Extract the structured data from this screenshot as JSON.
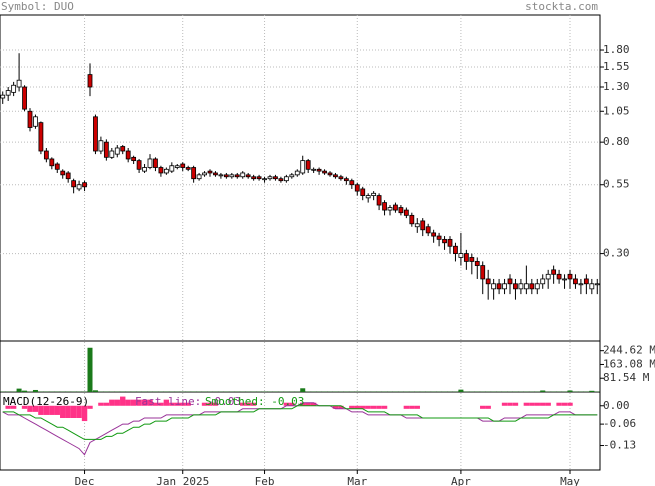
{
  "header": {
    "symbol": "Symbol: DUO",
    "site": "stockta.com"
  },
  "chart_data": [
    {
      "type": "candlestick",
      "xlim": [
        -0.5,
        109.5
      ],
      "xticks": [
        {
          "value": 15,
          "label": "Dec"
        },
        {
          "value": 33,
          "label": "Jan 2025"
        },
        {
          "value": 48,
          "label": "Feb"
        },
        {
          "value": 65,
          "label": "Mar"
        },
        {
          "value": 84,
          "label": "Apr"
        },
        {
          "value": 104,
          "label": "May"
        }
      ],
      "log_scale": true,
      "ylim": [
        0.139,
        2.45
      ],
      "yticks": [
        {
          "value": 1.8,
          "label": "1.80"
        },
        {
          "value": 1.55,
          "label": "1.55"
        },
        {
          "value": 1.3,
          "label": "1.30"
        },
        {
          "value": 1.05,
          "label": "1.05"
        },
        {
          "value": 0.8,
          "label": "0.80"
        },
        {
          "value": 0.55,
          "label": "0.55"
        },
        {
          "value": 0.3,
          "label": "0.30"
        }
      ],
      "grid": true,
      "up_color": "#ffffff",
      "down_color": "#cc0000",
      "open": [
        1.18,
        1.21,
        1.24,
        1.3,
        1.3,
        1.05,
        0.92,
        0.95,
        0.74,
        0.69,
        0.66,
        0.62,
        0.61,
        0.57,
        0.53,
        0.56,
        1.45,
        1.0,
        0.74,
        0.8,
        0.7,
        0.72,
        0.77,
        0.74,
        0.7,
        0.68,
        0.62,
        0.64,
        0.69,
        0.64,
        0.61,
        0.62,
        0.64,
        0.66,
        0.64,
        0.64,
        0.58,
        0.6,
        0.62,
        0.61,
        0.6,
        0.6,
        0.59,
        0.6,
        0.59,
        0.6,
        0.59,
        0.59,
        0.58,
        0.58,
        0.59,
        0.58,
        0.57,
        0.59,
        0.6,
        0.61,
        0.68,
        0.63,
        0.63,
        0.62,
        0.61,
        0.6,
        0.59,
        0.58,
        0.57,
        0.55,
        0.53,
        0.49,
        0.5,
        0.5,
        0.47,
        0.44,
        0.46,
        0.45,
        0.44,
        0.42,
        0.38,
        0.4,
        0.38,
        0.36,
        0.35,
        0.34,
        0.34,
        0.32,
        0.29,
        0.3,
        0.29,
        0.28,
        0.27,
        0.24,
        0.22,
        0.23,
        0.22,
        0.24,
        0.23,
        0.22,
        0.22,
        0.23,
        0.22,
        0.23,
        0.24,
        0.26,
        0.25,
        0.24,
        0.25,
        0.24,
        0.23,
        0.24,
        0.22,
        0.23
      ],
      "high": [
        1.25,
        1.3,
        1.36,
        1.75,
        1.32,
        1.08,
        1.02,
        0.96,
        0.76,
        0.7,
        0.67,
        0.63,
        0.62,
        0.58,
        0.57,
        0.57,
        1.6,
        1.02,
        0.84,
        0.82,
        0.76,
        0.78,
        0.78,
        0.76,
        0.71,
        0.69,
        0.66,
        0.72,
        0.7,
        0.65,
        0.64,
        0.67,
        0.66,
        0.67,
        0.65,
        0.65,
        0.61,
        0.62,
        0.63,
        0.62,
        0.61,
        0.61,
        0.61,
        0.61,
        0.62,
        0.61,
        0.6,
        0.6,
        0.59,
        0.6,
        0.6,
        0.59,
        0.6,
        0.61,
        0.63,
        0.71,
        0.69,
        0.64,
        0.64,
        0.63,
        0.62,
        0.61,
        0.6,
        0.59,
        0.58,
        0.56,
        0.54,
        0.51,
        0.52,
        0.51,
        0.48,
        0.46,
        0.47,
        0.46,
        0.45,
        0.43,
        0.41,
        0.41,
        0.39,
        0.37,
        0.36,
        0.35,
        0.35,
        0.33,
        0.36,
        0.31,
        0.3,
        0.29,
        0.28,
        0.26,
        0.24,
        0.24,
        0.24,
        0.25,
        0.24,
        0.24,
        0.27,
        0.24,
        0.24,
        0.25,
        0.26,
        0.27,
        0.26,
        0.25,
        0.26,
        0.25,
        0.24,
        0.25,
        0.24,
        0.24
      ],
      "low": [
        1.12,
        1.15,
        1.2,
        1.25,
        1.05,
        0.88,
        0.9,
        0.72,
        0.67,
        0.63,
        0.61,
        0.58,
        0.56,
        0.51,
        0.52,
        0.52,
        1.2,
        0.72,
        0.72,
        0.68,
        0.69,
        0.7,
        0.72,
        0.67,
        0.66,
        0.61,
        0.61,
        0.63,
        0.62,
        0.59,
        0.6,
        0.61,
        0.63,
        0.62,
        0.62,
        0.56,
        0.57,
        0.59,
        0.59,
        0.59,
        0.58,
        0.58,
        0.58,
        0.58,
        0.58,
        0.58,
        0.57,
        0.57,
        0.56,
        0.57,
        0.57,
        0.56,
        0.56,
        0.58,
        0.59,
        0.6,
        0.61,
        0.61,
        0.6,
        0.6,
        0.59,
        0.58,
        0.57,
        0.55,
        0.53,
        0.5,
        0.48,
        0.47,
        0.48,
        0.44,
        0.42,
        0.42,
        0.43,
        0.42,
        0.41,
        0.38,
        0.36,
        0.35,
        0.35,
        0.33,
        0.32,
        0.31,
        0.3,
        0.28,
        0.27,
        0.26,
        0.25,
        0.24,
        0.21,
        0.2,
        0.2,
        0.21,
        0.21,
        0.21,
        0.2,
        0.21,
        0.21,
        0.21,
        0.21,
        0.22,
        0.22,
        0.23,
        0.23,
        0.22,
        0.22,
        0.22,
        0.21,
        0.21,
        0.21,
        0.21
      ],
      "close": [
        1.21,
        1.26,
        1.32,
        1.38,
        1.07,
        0.91,
        1.0,
        0.74,
        0.69,
        0.65,
        0.63,
        0.6,
        0.58,
        0.54,
        0.55,
        0.54,
        1.3,
        0.74,
        0.81,
        0.7,
        0.74,
        0.76,
        0.74,
        0.69,
        0.68,
        0.63,
        0.64,
        0.69,
        0.64,
        0.61,
        0.63,
        0.65,
        0.65,
        0.64,
        0.63,
        0.58,
        0.6,
        0.61,
        0.61,
        0.6,
        0.6,
        0.59,
        0.6,
        0.59,
        0.61,
        0.59,
        0.58,
        0.58,
        0.58,
        0.59,
        0.58,
        0.57,
        0.59,
        0.6,
        0.62,
        0.68,
        0.63,
        0.63,
        0.62,
        0.61,
        0.6,
        0.59,
        0.58,
        0.57,
        0.55,
        0.52,
        0.5,
        0.5,
        0.51,
        0.46,
        0.44,
        0.45,
        0.44,
        0.43,
        0.42,
        0.39,
        0.39,
        0.37,
        0.36,
        0.35,
        0.34,
        0.33,
        0.32,
        0.3,
        0.3,
        0.28,
        0.28,
        0.27,
        0.24,
        0.23,
        0.23,
        0.22,
        0.23,
        0.23,
        0.22,
        0.23,
        0.23,
        0.22,
        0.23,
        0.24,
        0.25,
        0.25,
        0.24,
        0.24,
        0.24,
        0.23,
        0.23,
        0.23,
        0.23,
        0.23
      ]
    },
    {
      "type": "bar",
      "color": "#1a7a1a",
      "ylim": [
        0,
        302
      ],
      "yticks": [
        {
          "value": 244.62,
          "label": "244.62 M"
        },
        {
          "value": 163.08,
          "label": "163.08 M"
        },
        {
          "value": 81.54,
          "label": "81.54 M"
        }
      ],
      "values": [
        2,
        2,
        2,
        20,
        8,
        2,
        12,
        2,
        2,
        2,
        2,
        2,
        2,
        2,
        2,
        2,
        262,
        10,
        2,
        2,
        2,
        2,
        2,
        2,
        2,
        2,
        2,
        2,
        2,
        2,
        2,
        2,
        2,
        2,
        2,
        2,
        2,
        2,
        2,
        2,
        2,
        2,
        2,
        2,
        2,
        2,
        2,
        2,
        2,
        2,
        2,
        2,
        2,
        2,
        2,
        22,
        2,
        2,
        2,
        2,
        2,
        2,
        2,
        2,
        2,
        2,
        2,
        2,
        2,
        2,
        2,
        2,
        2,
        2,
        2,
        2,
        2,
        2,
        2,
        2,
        2,
        2,
        2,
        2,
        14,
        2,
        2,
        2,
        2,
        2,
        2,
        2,
        2,
        2,
        2,
        2,
        2,
        2,
        2,
        9,
        2,
        2,
        2,
        2,
        9,
        2,
        2,
        2,
        7,
        2
      ]
    },
    {
      "type": "macd",
      "title": "MACD(12-26-9)",
      "ylim": [
        -0.21,
        0.045
      ],
      "yticks": [
        {
          "value": 0,
          "label": "0.00"
        },
        {
          "value": -0.06,
          "label": "-0.06"
        },
        {
          "value": -0.13,
          "label": "-0.13"
        }
      ],
      "histogram": {
        "color": "#ff3388",
        "values": [
          0,
          -0.01,
          -0.01,
          0,
          -0.01,
          -0.02,
          -0.02,
          -0.03,
          -0.03,
          -0.03,
          -0.03,
          -0.04,
          -0.04,
          -0.04,
          -0.04,
          -0.05,
          -0.01,
          0,
          0.01,
          0.01,
          0.02,
          0.02,
          0.03,
          0.02,
          0.02,
          0.02,
          0.02,
          0.02,
          0.01,
          0.01,
          0.02,
          0.01,
          0.01,
          0.01,
          0.01,
          0,
          0,
          0.01,
          0.01,
          0.01,
          0,
          0,
          0,
          0,
          0.01,
          0.01,
          0.01,
          0,
          0,
          0,
          0,
          0,
          0.01,
          0.01,
          0,
          0.01,
          0.01,
          0.01,
          0,
          0,
          0,
          -0.01,
          -0.01,
          0,
          -0.01,
          -0.01,
          -0.01,
          -0.01,
          -0.01,
          -0.01,
          -0.01,
          0,
          0,
          0,
          -0.01,
          -0.01,
          -0.01,
          0,
          0,
          0,
          0,
          0,
          0,
          0,
          0,
          0,
          0,
          0,
          -0.01,
          -0.01,
          0,
          0,
          0.01,
          0.01,
          0.01,
          0,
          0.01,
          0.01,
          0.01,
          0.01,
          0.01,
          0,
          0.01,
          0.01,
          0.01,
          0,
          0,
          0,
          0,
          0
        ]
      },
      "series": [
        {
          "name": "Fast line: -0.03",
          "color": "#993399",
          "values": [
            -0.02,
            -0.03,
            -0.03,
            -0.03,
            -0.04,
            -0.05,
            -0.06,
            -0.07,
            -0.08,
            -0.09,
            -0.1,
            -0.11,
            -0.12,
            -0.13,
            -0.14,
            -0.16,
            -0.12,
            -0.11,
            -0.1,
            -0.09,
            -0.08,
            -0.07,
            -0.06,
            -0.06,
            -0.05,
            -0.05,
            -0.04,
            -0.04,
            -0.04,
            -0.04,
            -0.03,
            -0.03,
            -0.03,
            -0.03,
            -0.03,
            -0.03,
            -0.03,
            -0.02,
            -0.02,
            -0.02,
            -0.02,
            -0.02,
            -0.02,
            -0.02,
            -0.01,
            -0.01,
            -0.01,
            -0.01,
            -0.01,
            -0.01,
            -0.01,
            -0.01,
            0.0,
            0.0,
            0.0,
            0.01,
            0.01,
            0.01,
            0.0,
            0.0,
            0.0,
            -0.01,
            -0.01,
            -0.01,
            -0.02,
            -0.02,
            -0.02,
            -0.03,
            -0.03,
            -0.03,
            -0.03,
            -0.03,
            -0.03,
            -0.03,
            -0.04,
            -0.04,
            -0.04,
            -0.04,
            -0.04,
            -0.04,
            -0.04,
            -0.04,
            -0.04,
            -0.04,
            -0.04,
            -0.04,
            -0.04,
            -0.04,
            -0.05,
            -0.05,
            -0.05,
            -0.05,
            -0.04,
            -0.04,
            -0.04,
            -0.04,
            -0.03,
            -0.03,
            -0.03,
            -0.03,
            -0.03,
            -0.03,
            -0.02,
            -0.02,
            -0.02,
            -0.03,
            -0.03,
            -0.03,
            -0.03,
            -0.03
          ]
        },
        {
          "name": "Smoothed: -0.03",
          "color": "#119911",
          "values": [
            -0.02,
            -0.02,
            -0.02,
            -0.03,
            -0.03,
            -0.03,
            -0.04,
            -0.04,
            -0.05,
            -0.06,
            -0.07,
            -0.07,
            -0.08,
            -0.09,
            -0.1,
            -0.11,
            -0.11,
            -0.11,
            -0.11,
            -0.1,
            -0.1,
            -0.09,
            -0.09,
            -0.08,
            -0.07,
            -0.07,
            -0.06,
            -0.06,
            -0.05,
            -0.05,
            -0.05,
            -0.04,
            -0.04,
            -0.04,
            -0.04,
            -0.03,
            -0.03,
            -0.03,
            -0.03,
            -0.03,
            -0.02,
            -0.02,
            -0.02,
            -0.02,
            -0.02,
            -0.02,
            -0.02,
            -0.01,
            -0.01,
            -0.01,
            -0.01,
            -0.01,
            -0.01,
            -0.01,
            0.0,
            0.0,
            0.0,
            0.0,
            0.0,
            0.0,
            0.0,
            0.0,
            0.0,
            -0.01,
            -0.01,
            -0.01,
            -0.01,
            -0.02,
            -0.02,
            -0.02,
            -0.02,
            -0.03,
            -0.03,
            -0.03,
            -0.03,
            -0.03,
            -0.03,
            -0.04,
            -0.04,
            -0.04,
            -0.04,
            -0.04,
            -0.04,
            -0.04,
            -0.04,
            -0.04,
            -0.04,
            -0.04,
            -0.04,
            -0.04,
            -0.05,
            -0.05,
            -0.05,
            -0.05,
            -0.05,
            -0.04,
            -0.04,
            -0.04,
            -0.04,
            -0.04,
            -0.04,
            -0.03,
            -0.03,
            -0.03,
            -0.03,
            -0.03,
            -0.03,
            -0.03,
            -0.03,
            -0.03
          ]
        }
      ]
    }
  ]
}
